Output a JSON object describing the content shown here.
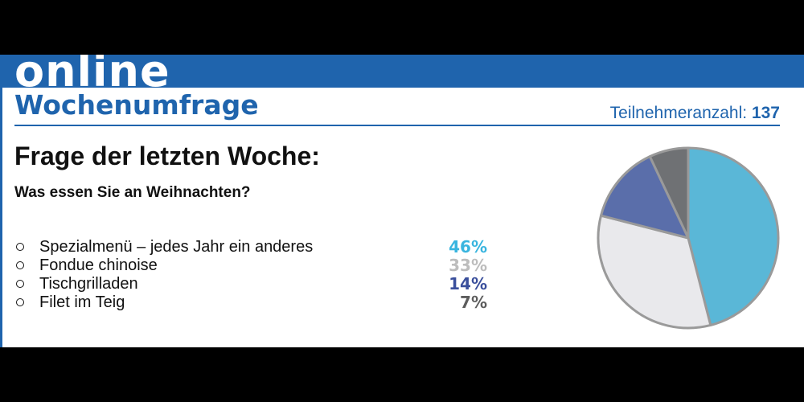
{
  "header": {
    "brand": "online",
    "title": "Wochenumfrage",
    "participants_label": "Teilnehmeranzahl:",
    "participants_count": "137"
  },
  "question": {
    "heading": "Frage der letzten Woche:",
    "text": "Was essen Sie an Weihnachten?"
  },
  "colors": {
    "brand_blue": "#1f64ad",
    "slice_1": "#5ab7d7",
    "slice_2": "#e9e9ec",
    "slice_3": "#5a6eaa",
    "slice_4": "#6f7174",
    "pct_1": "#39b5df",
    "pct_2": "#bdbdbd",
    "pct_3": "#3a4f9c",
    "pct_4": "#5d5d5d"
  },
  "chart_data": {
    "type": "pie",
    "categories": [
      "Spezialmenü – jedes Jahr ein anderes",
      "Fondue chinoise",
      "Tischgrilladen",
      "Filet im Teig"
    ],
    "values": [
      46,
      33,
      14,
      7
    ],
    "value_labels": [
      "46%",
      "33%",
      "14%",
      "7%"
    ],
    "start": "12 o'clock, clockwise"
  }
}
